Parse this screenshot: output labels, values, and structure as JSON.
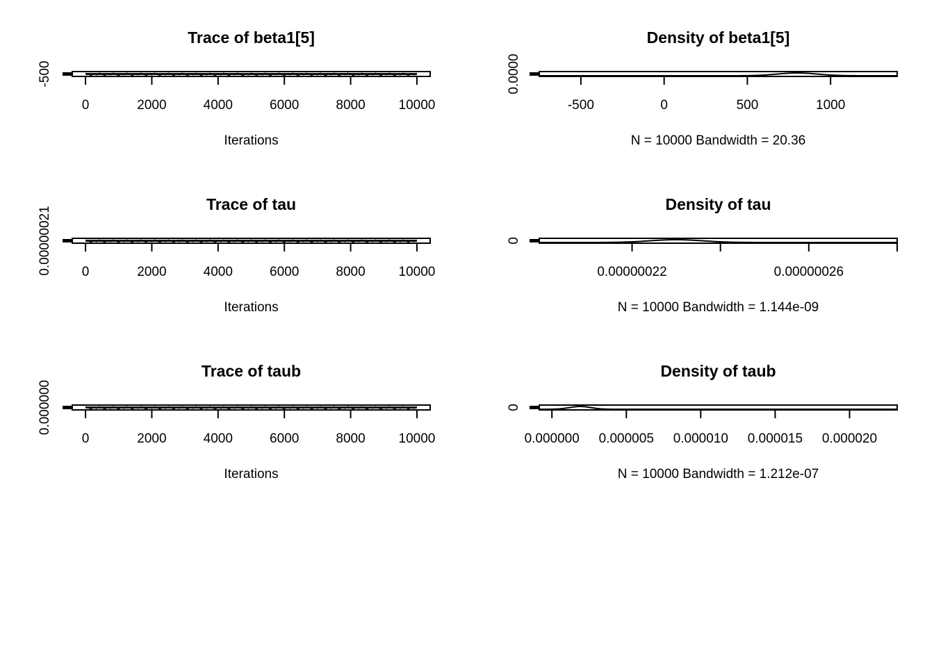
{
  "chart_data": [
    {
      "type": "line",
      "title": "Trace of beta1[5]",
      "xlabel": "Iterations",
      "xticks": [
        "0",
        "2000",
        "4000",
        "6000",
        "8000",
        "10000"
      ],
      "xtick_values": [
        0,
        2000,
        4000,
        6000,
        8000,
        10000
      ],
      "xlim": [
        -400,
        10400
      ],
      "yticks": [
        "-500"
      ],
      "series": [
        {
          "x_range": [
            0,
            10000
          ],
          "n": 10000
        }
      ]
    },
    {
      "type": "area",
      "title": "Density of beta1[5]",
      "xlabel": "N = 10000   Bandwidth = 20.36",
      "xticks": [
        "-500",
        "0",
        "500",
        "1000"
      ],
      "xtick_values": [
        -500,
        0,
        500,
        1000
      ],
      "xlim": [
        -750,
        1400
      ],
      "yticks": [
        "0.0000"
      ],
      "density_peak_x": 800,
      "density_spread": 120
    },
    {
      "type": "line",
      "title": "Trace of tau",
      "xlabel": "Iterations",
      "xticks": [
        "0",
        "2000",
        "4000",
        "6000",
        "8000",
        "10000"
      ],
      "xtick_values": [
        0,
        2000,
        4000,
        6000,
        8000,
        10000
      ],
      "xlim": [
        -400,
        10400
      ],
      "yticks": [
        "0.00000021"
      ],
      "series": [
        {
          "x_range": [
            0,
            10000
          ],
          "n": 10000
        }
      ]
    },
    {
      "type": "area",
      "title": "Density of tau",
      "xlabel": "N = 10000   Bandwidth = 1.144e-09",
      "xticks": [
        "0.00000022",
        "0.00000026"
      ],
      "xtick_values": [
        2.2e-07,
        2.4e-07,
        2.6e-07,
        2.8e-07
      ],
      "xtick_label_values": [
        2.2e-07,
        2.6e-07
      ],
      "xlim": [
        1.99e-07,
        2.8e-07
      ],
      "yticks": [
        "0"
      ],
      "density_peak_x": 2.3e-07,
      "density_spread": 6e-09
    },
    {
      "type": "line",
      "title": "Trace of taub",
      "xlabel": "Iterations",
      "xticks": [
        "0",
        "2000",
        "4000",
        "6000",
        "8000",
        "10000"
      ],
      "xtick_values": [
        0,
        2000,
        4000,
        6000,
        8000,
        10000
      ],
      "xlim": [
        -400,
        10400
      ],
      "yticks": [
        "0.000000"
      ],
      "series": [
        {
          "x_range": [
            0,
            10000
          ],
          "n": 10000
        }
      ]
    },
    {
      "type": "area",
      "title": "Density of taub",
      "xlabel": "N = 10000   Bandwidth = 1.212e-07",
      "xticks": [
        "0.000000",
        "0.000005",
        "0.000010",
        "0.000015",
        "0.000020"
      ],
      "xtick_values": [
        0,
        5e-06,
        1e-05,
        1.5e-05,
        2e-05
      ],
      "xlim": [
        -8.5e-07,
        2.32e-05
      ],
      "yticks": [
        "0"
      ],
      "density_peak_x": 1.9e-06,
      "density_spread": 7e-07
    }
  ]
}
